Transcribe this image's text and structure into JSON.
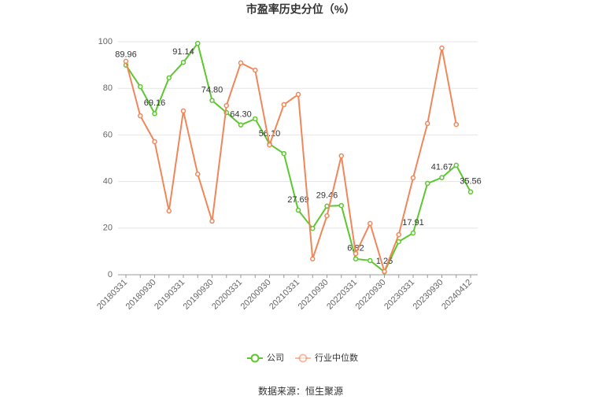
{
  "chart_data": {
    "type": "line",
    "title": "市盈率历史分位（%）",
    "categories": [
      "20180331",
      null,
      "20180930",
      null,
      "20190331",
      null,
      "20190930",
      null,
      "20200331",
      null,
      "20200930",
      null,
      "20210331",
      null,
      "20210930",
      null,
      "20220331",
      null,
      "20220930",
      null,
      "20230331",
      null,
      "20230930",
      null,
      "20240412"
    ],
    "series": [
      {
        "name": "公司",
        "color": "#5cc72e",
        "values": [
          89.96,
          80.7,
          69.16,
          84.5,
          91.14,
          99.3,
          74.8,
          69.6,
          64.3,
          66.9,
          56.1,
          52.0,
          27.69,
          19.9,
          29.46,
          29.7,
          6.82,
          6.1,
          1.25,
          14.2,
          17.91,
          39.2,
          41.67,
          47.0,
          35.56
        ],
        "value_labels": [
          "89.96",
          null,
          "69.16",
          null,
          "91.14",
          null,
          "74.80",
          null,
          "64.30",
          null,
          "56.10",
          null,
          "27.69",
          null,
          "29.46",
          null,
          "6.82",
          null,
          "1.25",
          null,
          "17.91",
          null,
          "41.67",
          null,
          "35.56"
        ]
      },
      {
        "name": "行业中位数",
        "color": "#f0875a",
        "values": [
          91.6,
          68.2,
          57.1,
          27.4,
          70.3,
          43.2,
          23.0,
          72.6,
          90.9,
          87.8,
          55.7,
          73.0,
          77.4,
          6.8,
          25.3,
          51.0,
          9.1,
          22.0,
          1.4,
          17.2,
          41.6,
          64.9,
          97.3,
          64.5,
          null
        ]
      }
    ],
    "ylim": [
      0,
      100
    ],
    "yticks": [
      0,
      20,
      40,
      60,
      80,
      100
    ],
    "grid": true,
    "legend": "bottom",
    "source": "数据来源：恒生聚源"
  }
}
